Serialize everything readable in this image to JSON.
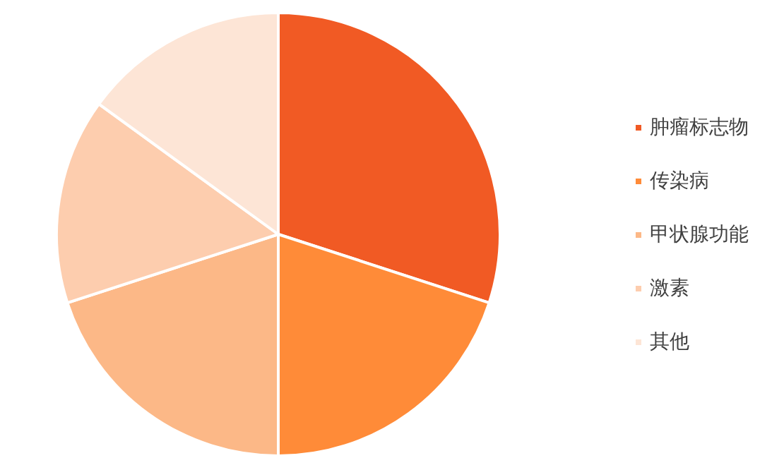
{
  "chart_data": {
    "type": "pie",
    "categories": [
      "肿瘤标志物",
      "传染病",
      "甲状腺功能",
      "激素",
      "其他"
    ],
    "values": [
      30,
      20,
      20,
      15,
      15
    ],
    "colors": [
      "#f15a24",
      "#ff8b38",
      "#fcb887",
      "#fdcdae",
      "#fde5d6"
    ],
    "legend": "right"
  }
}
